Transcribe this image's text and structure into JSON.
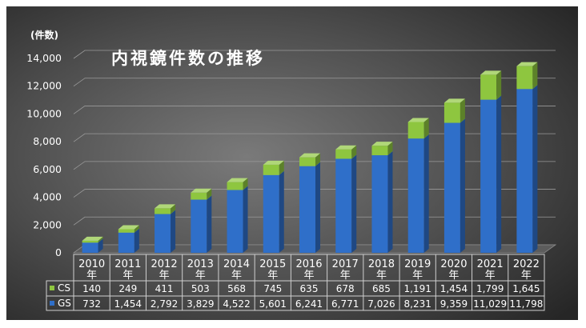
{
  "chart_data": {
    "type": "bar",
    "stacked": true,
    "title": "内視鏡件数の推移",
    "ylabel": "(件数)",
    "ylim": [
      0,
      14000
    ],
    "yticks": [
      "0",
      "2,000",
      "4,000",
      "6,000",
      "8,000",
      "10,000",
      "12,000",
      "14,000"
    ],
    "categories": [
      "2010年",
      "2011年",
      "2012年",
      "2013年",
      "2014年",
      "2015年",
      "2016年",
      "2017年",
      "2018年",
      "2019年",
      "2020年",
      "2021年",
      "2022年"
    ],
    "category_years": [
      "2010",
      "2011",
      "2012",
      "2013",
      "2014",
      "2015",
      "2016",
      "2017",
      "2018",
      "2019",
      "2020",
      "2021",
      "2022"
    ],
    "category_suffix": "年",
    "series": [
      {
        "name": "GS",
        "color": "#2f6fc9",
        "values": [
          732,
          1454,
          2792,
          3829,
          4522,
          5601,
          6241,
          6771,
          7026,
          8231,
          9359,
          11029,
          11798
        ],
        "labels": [
          "732",
          "1,454",
          "2,792",
          "3,829",
          "4,522",
          "5,601",
          "6,241",
          "6,771",
          "7,026",
          "8,231",
          "9,359",
          "11,029",
          "11,798"
        ]
      },
      {
        "name": "CS",
        "color": "#8ec63f",
        "values": [
          140,
          249,
          411,
          503,
          568,
          745,
          635,
          678,
          685,
          1191,
          1454,
          1799,
          1645
        ],
        "labels": [
          "140",
          "249",
          "411",
          "503",
          "568",
          "745",
          "635",
          "678",
          "685",
          "1,191",
          "1,454",
          "1,799",
          "1,645"
        ]
      }
    ],
    "table_row_order": [
      "CS",
      "GS"
    ],
    "grid": true,
    "legend": "data-table"
  }
}
